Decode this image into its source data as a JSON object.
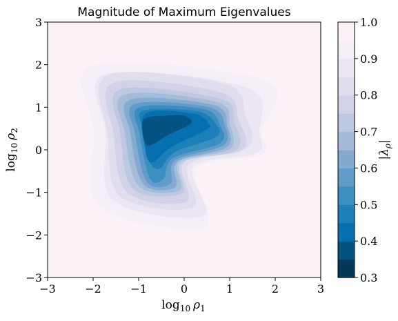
{
  "chart_data": {
    "type": "heatmap",
    "title": "Magnitude of Maximum Eigenvalues",
    "xlabel": {
      "base": "log",
      "sub": "10",
      "var": "ρ",
      "var_sub": "1"
    },
    "ylabel": {
      "base": "log",
      "sub": "10",
      "var": "ρ",
      "var_sub": "2"
    },
    "xlim": [
      -3,
      3
    ],
    "ylim": [
      -3,
      3
    ],
    "xticks": [
      -3,
      -2,
      -1,
      0,
      1,
      2,
      3
    ],
    "yticks": [
      -3,
      -2,
      -1,
      0,
      1,
      2,
      3
    ],
    "xtick_labels": [
      "−3",
      "−2",
      "−1",
      "0",
      "1",
      "2",
      "3"
    ],
    "ytick_labels": [
      "−3",
      "−2",
      "−1",
      "0",
      "1",
      "2",
      "3"
    ],
    "colorbar": {
      "label": "|λ_ρ|",
      "label_parts": {
        "left": "|",
        "var": "λ",
        "var_sub": "ρ",
        "right": "|"
      },
      "range": [
        0.3,
        1.0
      ],
      "ticks": [
        0.3,
        0.4,
        0.5,
        0.6,
        0.7,
        0.8,
        0.9,
        1.0
      ],
      "tick_labels": [
        "0.3",
        "0.4",
        "0.5",
        "0.6",
        "0.7",
        "0.8",
        "0.9",
        "1.0"
      ],
      "levels": [
        0.3,
        0.35,
        0.4,
        0.45,
        0.5,
        0.55,
        0.6,
        0.65,
        0.7,
        0.75,
        0.8,
        0.85,
        0.9,
        0.95,
        1.0
      ],
      "colormap": "PuBu_r",
      "colors": [
        "#023858",
        "#045382",
        "#056faf",
        "#1c7fb7",
        "#3a8fc0",
        "#619cc9",
        "#83abd0",
        "#a4bcda",
        "#bdc8e1",
        "#d1d2e7",
        "#e0dded",
        "#ebe6f2",
        "#f4eef6",
        "#fbf2f8"
      ]
    },
    "contour_levels": [
      {
        "level": 0.95,
        "points": [
          [
            -2.28,
            2.28
          ],
          [
            1.78,
            2.18
          ],
          [
            1.7,
            0.5
          ],
          [
            2.1,
            -0.42
          ],
          [
            0.42,
            -0.58
          ],
          [
            0.48,
            -2.1
          ],
          [
            -2.2,
            -1.18
          ],
          [
            -2.28,
            0.5
          ]
        ]
      },
      {
        "level": 0.9,
        "points": [
          [
            -1.98,
            1.98
          ],
          [
            1.8,
            1.62
          ],
          [
            1.7,
            0.45
          ],
          [
            1.72,
            -0.1
          ],
          [
            0.28,
            -0.45
          ],
          [
            0.45,
            -1.82
          ],
          [
            -1.85,
            -1.35
          ],
          [
            -1.98,
            0.4
          ]
        ]
      },
      {
        "level": 0.85,
        "points": [
          [
            -1.72,
            1.78
          ],
          [
            1.4,
            1.45
          ],
          [
            1.65,
            0.4
          ],
          [
            1.58,
            -0.08
          ],
          [
            0.2,
            -0.4
          ],
          [
            0.42,
            -1.55
          ],
          [
            -1.55,
            -1.2
          ],
          [
            -1.72,
            0.4
          ]
        ]
      },
      {
        "level": 0.8,
        "points": [
          [
            -1.68,
            1.75
          ],
          [
            0.9,
            1.55
          ],
          [
            1.35,
            0.8
          ],
          [
            1.4,
            0.05
          ],
          [
            0.1,
            -0.35
          ],
          [
            0.2,
            -1.35
          ],
          [
            -1.4,
            -1.1
          ],
          [
            -1.68,
            0.38
          ]
        ]
      },
      {
        "level": 0.75,
        "points": [
          [
            -1.55,
            1.58
          ],
          [
            0.8,
            1.35
          ],
          [
            1.2,
            0.7
          ],
          [
            1.28,
            0.0
          ],
          [
            0.0,
            -0.3
          ],
          [
            0.05,
            -1.22
          ],
          [
            -1.25,
            -1.0
          ],
          [
            -1.55,
            0.38
          ]
        ]
      },
      {
        "level": 0.7,
        "points": [
          [
            -1.4,
            1.42
          ],
          [
            0.8,
            1.2
          ],
          [
            1.1,
            0.65
          ],
          [
            1.15,
            0.0
          ],
          [
            -0.05,
            -0.3
          ],
          [
            -0.05,
            -1.02
          ],
          [
            -1.12,
            -0.92
          ],
          [
            -1.4,
            0.38
          ]
        ]
      },
      {
        "level": 0.65,
        "points": [
          [
            -1.3,
            1.3
          ],
          [
            0.72,
            1.12
          ],
          [
            1.0,
            0.6
          ],
          [
            1.0,
            0.02
          ],
          [
            -0.1,
            -0.28
          ],
          [
            -0.1,
            -0.95
          ],
          [
            -1.0,
            -0.85
          ],
          [
            -1.3,
            0.38
          ]
        ]
      },
      {
        "level": 0.6,
        "points": [
          [
            -1.18,
            1.18
          ],
          [
            0.65,
            1.05
          ],
          [
            0.95,
            0.55
          ],
          [
            0.92,
            0.05
          ],
          [
            -0.15,
            -0.28
          ],
          [
            -0.2,
            -0.88
          ],
          [
            -0.9,
            -0.8
          ],
          [
            -1.18,
            0.38
          ]
        ]
      },
      {
        "level": 0.55,
        "points": [
          [
            -1.08,
            1.08
          ],
          [
            0.55,
            1.0
          ],
          [
            0.9,
            0.55
          ],
          [
            0.85,
            0.1
          ],
          [
            -0.2,
            -0.25
          ],
          [
            -0.3,
            -0.8
          ],
          [
            -0.82,
            -0.75
          ],
          [
            -1.08,
            0.38
          ]
        ]
      },
      {
        "level": 0.5,
        "points": [
          [
            -0.98,
            1.0
          ],
          [
            0.45,
            0.95
          ],
          [
            0.8,
            0.55
          ],
          [
            0.78,
            0.15
          ],
          [
            -0.25,
            -0.2
          ],
          [
            -0.45,
            -0.68
          ],
          [
            -0.75,
            -0.68
          ],
          [
            -0.98,
            0.38
          ]
        ]
      },
      {
        "level": 0.45,
        "points": [
          [
            -0.9,
            0.92
          ],
          [
            0.3,
            0.9
          ],
          [
            0.7,
            0.6
          ],
          [
            0.7,
            0.3
          ],
          [
            -0.2,
            -0.05
          ],
          [
            -0.55,
            -0.45
          ],
          [
            -0.8,
            -0.2
          ],
          [
            -0.9,
            0.45
          ]
        ]
      },
      {
        "level": 0.4,
        "points": [
          [
            -0.85,
            0.85
          ],
          [
            0.2,
            0.85
          ],
          [
            0.55,
            0.6
          ],
          [
            0.45,
            0.45
          ],
          [
            -0.3,
            0.05
          ],
          [
            -0.7,
            -0.3
          ],
          [
            -0.85,
            0.0
          ]
        ]
      },
      {
        "level": 0.35,
        "points": [
          [
            -0.88,
            0.72
          ],
          [
            -0.45,
            0.8
          ],
          [
            0.0,
            0.8
          ],
          [
            0.15,
            0.62
          ],
          [
            -0.35,
            0.35
          ],
          [
            -0.78,
            0.1
          ],
          [
            -0.9,
            0.35
          ]
        ]
      }
    ]
  }
}
